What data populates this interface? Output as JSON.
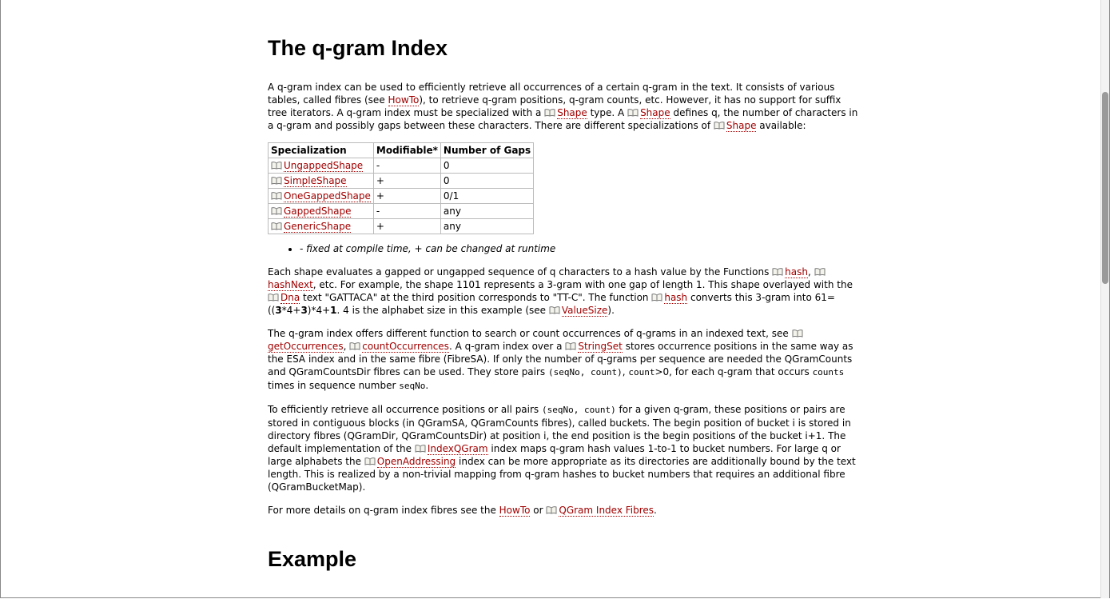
{
  "heading": "The q-gram Index",
  "intro": [
    {
      "t": "A q-gram index can be used to efficiently retrieve all occurrences of a certain q-gram in the text. It consists of various tables, called fibres (see "
    },
    {
      "a": "HowTo"
    },
    {
      "t": "), to retrieve q-gram positions, q-gram counts, etc. However, it has no support for suffix tree iterators. A q-gram index must be specialized with a "
    },
    {
      "i": "Shape"
    },
    {
      "t": " type. A "
    },
    {
      "i": "Shape"
    },
    {
      "t": " defines q, the number of characters in a q-gram and possibly gaps between these characters. There are different specializations of "
    },
    {
      "i": "Shape"
    },
    {
      "t": " available:"
    }
  ],
  "table": {
    "header": [
      "Specialization",
      "Modifiable*",
      "Number of Gaps"
    ],
    "rows": [
      [
        "UngappedShape",
        "-",
        "0"
      ],
      [
        "SimpleShape",
        "+",
        "0"
      ],
      [
        "OneGappedShape",
        "+",
        "0/1"
      ],
      [
        "GappedShape",
        "-",
        "any"
      ],
      [
        "GenericShape",
        "+",
        "any"
      ]
    ]
  },
  "note": "- fixed at compile time, + can be changed at runtime",
  "paragraphs": [
    [
      {
        "t": "Each shape evaluates a gapped or ungapped sequence of q characters to a hash value by the Functions "
      },
      {
        "i": "hash"
      },
      {
        "t": ", "
      },
      {
        "i": "hashNext"
      },
      {
        "t": ", etc. For example, the shape 1101 represents a 3-gram with one gap of length 1. This shape overlayed with the "
      },
      {
        "i": "Dna"
      },
      {
        "t": " text \"GATTACA\" at the third position corresponds to \"TT-C\". The function "
      },
      {
        "i": "hash"
      },
      {
        "t": " converts this 3-gram into 61=(("
      },
      {
        "b": "3"
      },
      {
        "t": "*4+"
      },
      {
        "b": "3"
      },
      {
        "t": ")*4+"
      },
      {
        "b": "1"
      },
      {
        "t": ". 4 is the alphabet size in this example (see "
      },
      {
        "i": "ValueSize"
      },
      {
        "t": ")."
      }
    ],
    [
      {
        "t": "The q-gram index offers different function to search or count occurrences of q-grams in an indexed text, see "
      },
      {
        "i": "getOccurrences"
      },
      {
        "t": ", "
      },
      {
        "i": "countOccurrences"
      },
      {
        "t": ". A q-gram index over a "
      },
      {
        "i": "StringSet"
      },
      {
        "t": " stores occurrence positions in the same way as the ESA index and in the same fibre (FibreSA). If only the number of q-grams per sequence are needed the QGramCounts and QGramCountsDir fibres can be used. They store pairs "
      },
      {
        "c": "(seqNo, count)"
      },
      {
        "t": ", "
      },
      {
        "c": "count"
      },
      {
        "t": ">0, for each q-gram that occurs "
      },
      {
        "c": "counts"
      },
      {
        "t": " times in sequence number "
      },
      {
        "c": "seqNo"
      },
      {
        "t": "."
      }
    ],
    [
      {
        "t": "To efficiently retrieve all occurrence positions or all pairs "
      },
      {
        "c": "(seqNo, count)"
      },
      {
        "t": " for a given q-gram, these positions or pairs are stored in contiguous blocks (in QGramSA, QGramCounts fibres), called buckets. The begin position of bucket i is stored in directory fibres (QGramDir, QGramCountsDir) at position i, the end position is the begin positions of the bucket i+1. The default implementation of the "
      },
      {
        "i": "IndexQGram"
      },
      {
        "t": " index maps q-gram hash values 1-to-1 to bucket numbers. For large q or large alphabets the "
      },
      {
        "i": "OpenAddressing"
      },
      {
        "t": " index can be more appropriate as its directories are additionally bound by the text length. This is realized by a non-trivial mapping from q-gram hashes to bucket numbers that requires an additional fibre (QGramBucketMap)."
      }
    ],
    [
      {
        "t": "For more details on q-gram index fibres see the "
      },
      {
        "a": "HowTo"
      },
      {
        "t": " or "
      },
      {
        "i": "QGram Index Fibres"
      },
      {
        "t": "."
      }
    ]
  ],
  "heading2": "Example"
}
